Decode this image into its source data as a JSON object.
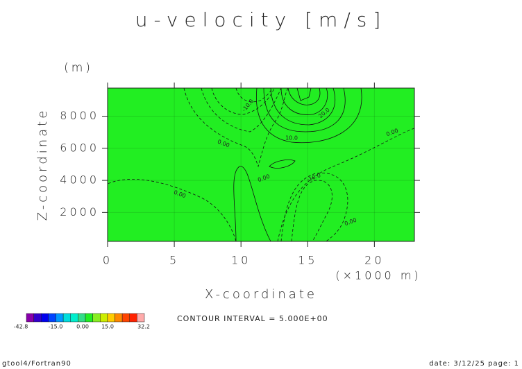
{
  "chart_data": {
    "type": "contour",
    "title": "u-velocity [m/s]",
    "y_unit": "(m)",
    "ylabel": "Z-coordinate",
    "xlabel": "X-coordinate",
    "x_unit": "(×1000 m)",
    "xlim": [
      0,
      23
    ],
    "xticks": [
      0,
      5,
      10,
      15,
      20
    ],
    "ylim": [
      200,
      9750
    ],
    "yticks": [
      2000,
      4000,
      6000,
      8000
    ],
    "grid": true,
    "contour_labels": [
      "-10.0",
      "-10.0",
      "10.0",
      "20.0",
      "0.00",
      "0.00",
      "0.00",
      "0.00",
      "0.00"
    ],
    "colorbar": {
      "colors": [
        "#8800aa",
        "#3300cc",
        "#0000ee",
        "#0044ff",
        "#0099ff",
        "#00dddd",
        "#00eecc",
        "#33dd88",
        "#22ee22",
        "#88ee22",
        "#ccee00",
        "#ffcc00",
        "#ff8800",
        "#ff4400",
        "#ff2200",
        "#ffaaaa"
      ],
      "labels": [
        "-42.8",
        "-15.0",
        "0.00",
        "15.0",
        "32.2"
      ]
    },
    "interval": "CONTOUR INTERVAL = 5.000E+00",
    "footer_left": "gtool4/Fortran90",
    "footer_right": "date: 3/12/25 page: 1"
  }
}
